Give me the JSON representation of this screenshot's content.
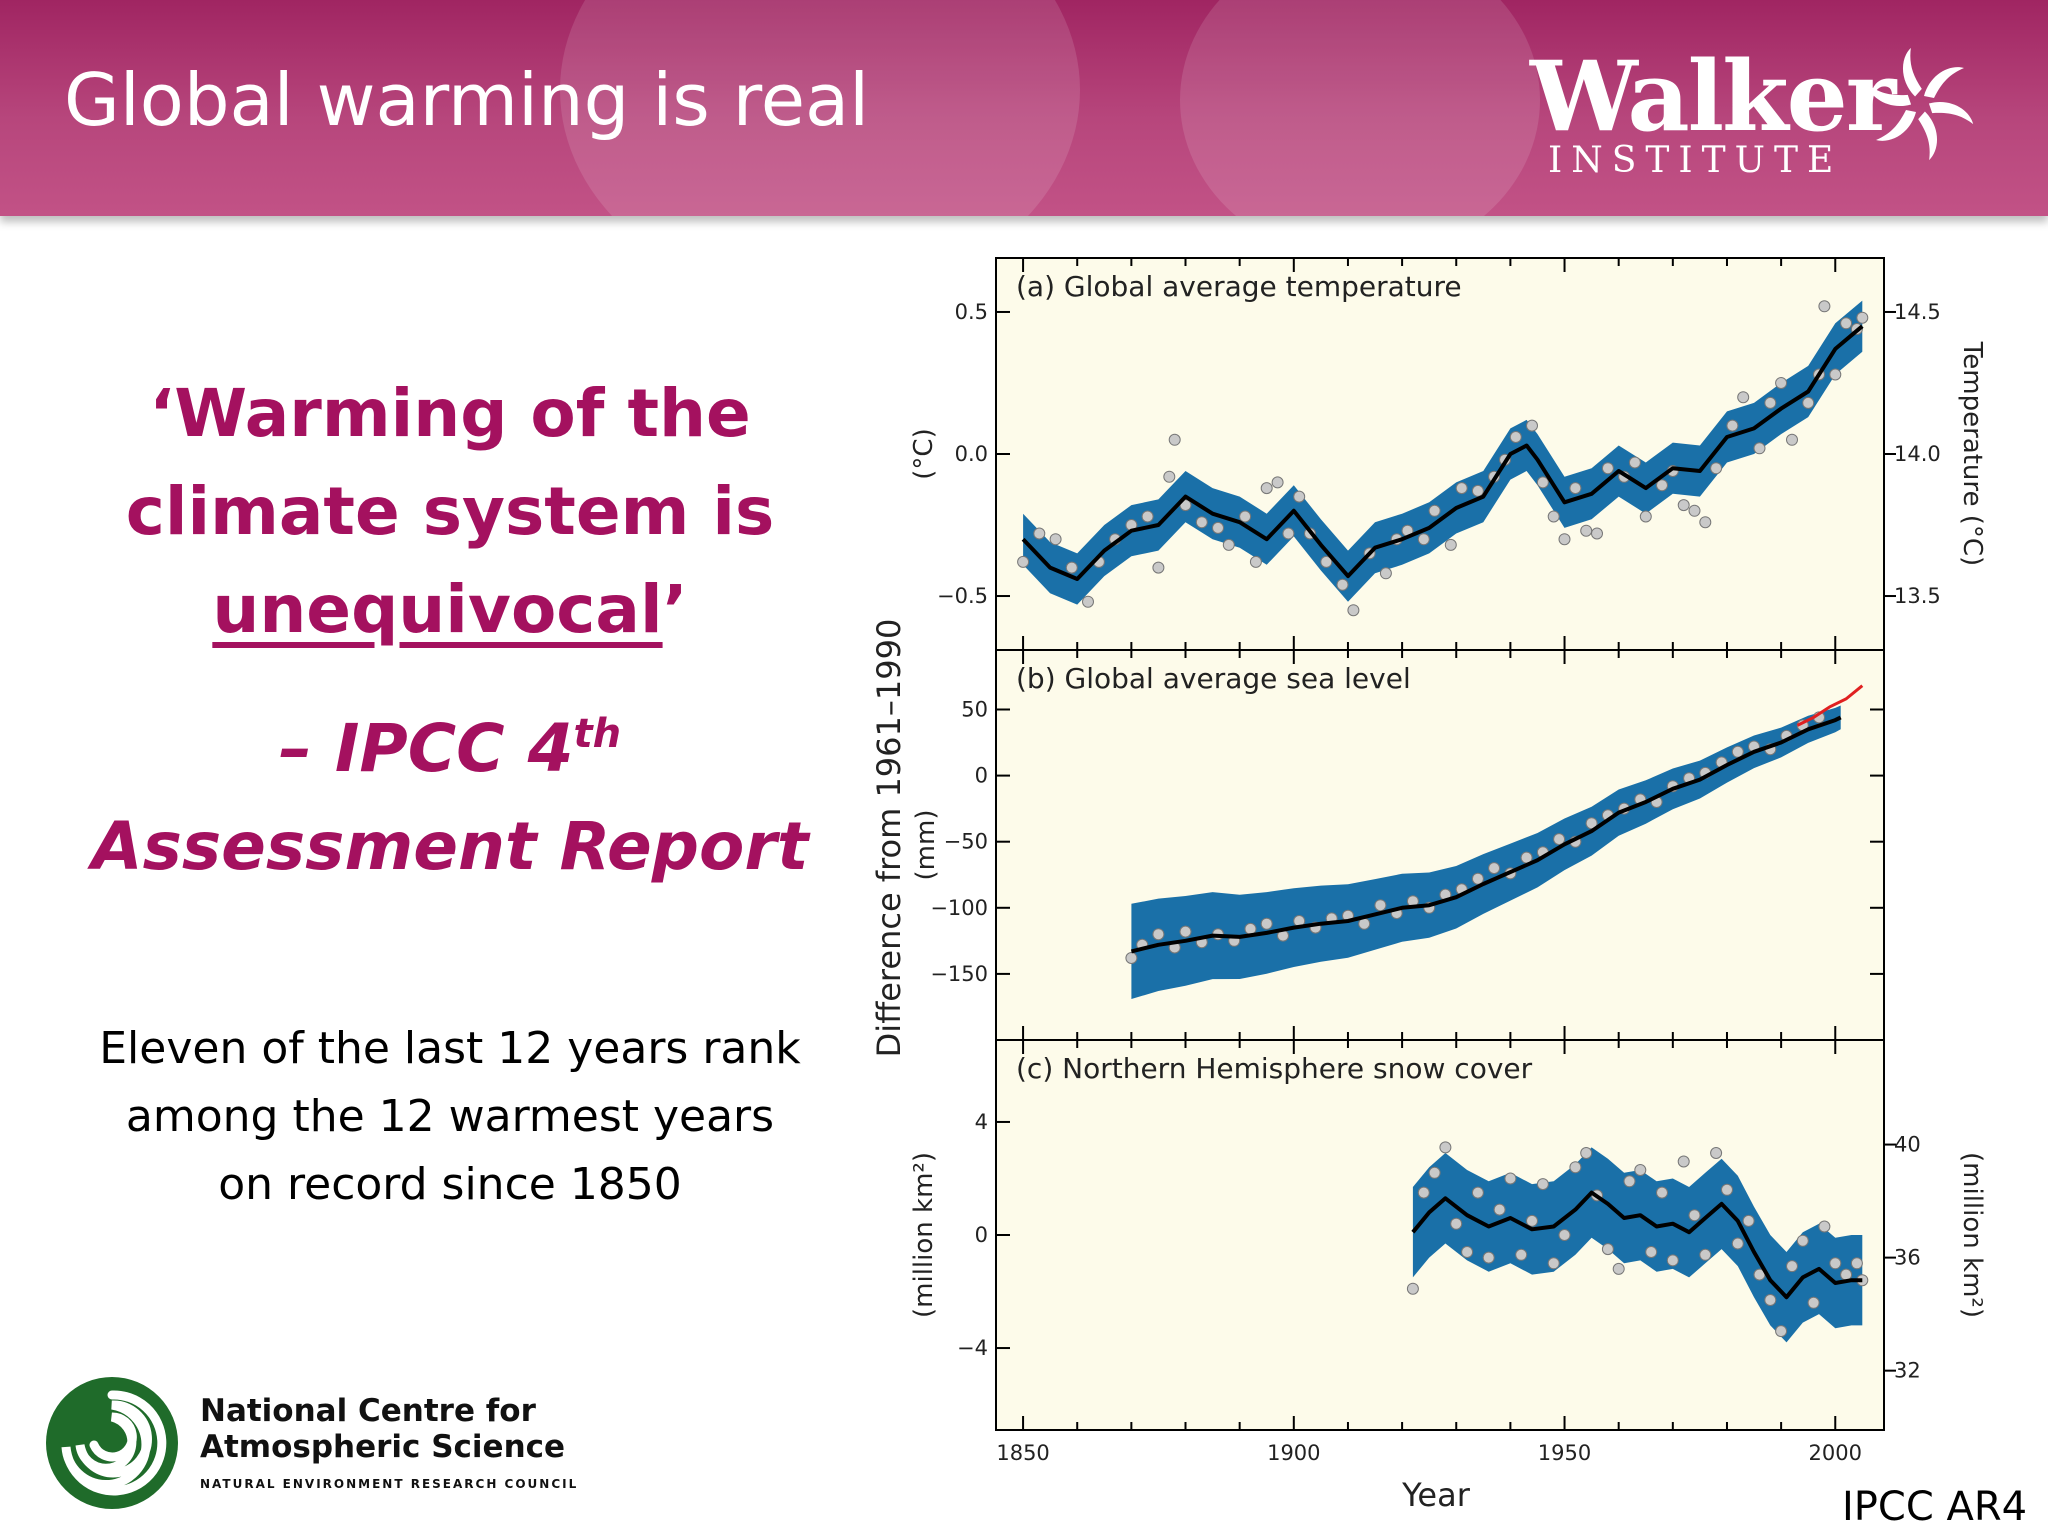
{
  "slide": {
    "title": "Global warming is real",
    "quote_line1": "‘Warming of the",
    "quote_line2": "climate system is",
    "quote_line3_word": "unequivocal",
    "quote_line3_end": "’",
    "attribution_line1_prefix": "– IPCC 4",
    "attribution_line1_sup": "th",
    "attribution_line2": "Assessment Report",
    "fact_line1": "Eleven of the last 12 years rank",
    "fact_line2": "among the 12 warmest years",
    "fact_line3": "on record since 1850",
    "source": "IPCC AR4",
    "colors": {
      "header": "#a62a66",
      "quote": "#a4115f",
      "band": "#1a70a8",
      "plot_bg": "#fdfbea",
      "satellite": "#e02020"
    }
  },
  "logos": {
    "walker_word": "Walker",
    "walker_sub": "INSTITUTE",
    "ncas_line1": "National Centre for",
    "ncas_line2": "Atmospheric Science",
    "ncas_sub": "NATURAL ENVIRONMENT RESEARCH COUNCIL"
  },
  "chart_data": {
    "type": "line",
    "xlabel": "Year",
    "xlim": [
      1845,
      2009
    ],
    "x_ticks": [
      1850,
      1900,
      1950,
      2000
    ],
    "shared_ylabel": "Difference from 1961–1990",
    "panels": [
      {
        "id": "temperature",
        "title": "(a) Global average temperature",
        "ylabel": "(°C)",
        "ylim": [
          -0.69,
          0.69
        ],
        "y_ticks": [
          -0.5,
          0.0,
          0.5
        ],
        "y_tick_labels": [
          "−0.5",
          "0.0",
          "0.5"
        ],
        "right_ylabel": "Temperature (°C)",
        "right_ticks": [
          {
            "value": -0.5,
            "label": "13.5"
          },
          {
            "value": 0.0,
            "label": "14.0"
          },
          {
            "value": 0.5,
            "label": "14.5"
          }
        ],
        "smoothed": [
          [
            1850,
            -0.3
          ],
          [
            1855,
            -0.4
          ],
          [
            1860,
            -0.44
          ],
          [
            1865,
            -0.34
          ],
          [
            1870,
            -0.27
          ],
          [
            1875,
            -0.25
          ],
          [
            1880,
            -0.15
          ],
          [
            1885,
            -0.21
          ],
          [
            1890,
            -0.24
          ],
          [
            1895,
            -0.3
          ],
          [
            1900,
            -0.2
          ],
          [
            1905,
            -0.32
          ],
          [
            1910,
            -0.43
          ],
          [
            1915,
            -0.33
          ],
          [
            1920,
            -0.3
          ],
          [
            1925,
            -0.26
          ],
          [
            1930,
            -0.19
          ],
          [
            1935,
            -0.15
          ],
          [
            1940,
            0.0
          ],
          [
            1943,
            0.03
          ],
          [
            1945,
            -0.02
          ],
          [
            1950,
            -0.17
          ],
          [
            1955,
            -0.14
          ],
          [
            1960,
            -0.06
          ],
          [
            1965,
            -0.12
          ],
          [
            1970,
            -0.05
          ],
          [
            1975,
            -0.06
          ],
          [
            1980,
            0.06
          ],
          [
            1985,
            0.09
          ],
          [
            1990,
            0.16
          ],
          [
            1995,
            0.22
          ],
          [
            2000,
            0.37
          ],
          [
            2005,
            0.45
          ]
        ],
        "band_halfwidth": 0.09,
        "annual": [
          [
            1850,
            -0.38
          ],
          [
            1853,
            -0.28
          ],
          [
            1856,
            -0.3
          ],
          [
            1859,
            -0.4
          ],
          [
            1862,
            -0.52
          ],
          [
            1864,
            -0.38
          ],
          [
            1867,
            -0.3
          ],
          [
            1870,
            -0.25
          ],
          [
            1873,
            -0.22
          ],
          [
            1875,
            -0.4
          ],
          [
            1877,
            -0.08
          ],
          [
            1878,
            0.05
          ],
          [
            1880,
            -0.18
          ],
          [
            1883,
            -0.24
          ],
          [
            1886,
            -0.26
          ],
          [
            1888,
            -0.32
          ],
          [
            1891,
            -0.22
          ],
          [
            1893,
            -0.38
          ],
          [
            1895,
            -0.12
          ],
          [
            1897,
            -0.1
          ],
          [
            1899,
            -0.28
          ],
          [
            1901,
            -0.15
          ],
          [
            1903,
            -0.28
          ],
          [
            1906,
            -0.38
          ],
          [
            1909,
            -0.46
          ],
          [
            1911,
            -0.55
          ],
          [
            1914,
            -0.35
          ],
          [
            1917,
            -0.42
          ],
          [
            1919,
            -0.3
          ],
          [
            1921,
            -0.27
          ],
          [
            1924,
            -0.3
          ],
          [
            1926,
            -0.2
          ],
          [
            1929,
            -0.32
          ],
          [
            1931,
            -0.12
          ],
          [
            1934,
            -0.13
          ],
          [
            1937,
            -0.08
          ],
          [
            1939,
            -0.02
          ],
          [
            1941,
            0.06
          ],
          [
            1944,
            0.1
          ],
          [
            1946,
            -0.1
          ],
          [
            1948,
            -0.22
          ],
          [
            1950,
            -0.3
          ],
          [
            1952,
            -0.12
          ],
          [
            1954,
            -0.27
          ],
          [
            1956,
            -0.28
          ],
          [
            1958,
            -0.05
          ],
          [
            1961,
            -0.08
          ],
          [
            1963,
            -0.03
          ],
          [
            1965,
            -0.22
          ],
          [
            1968,
            -0.11
          ],
          [
            1970,
            -0.06
          ],
          [
            1972,
            -0.18
          ],
          [
            1974,
            -0.2
          ],
          [
            1976,
            -0.24
          ],
          [
            1978,
            -0.05
          ],
          [
            1981,
            0.1
          ],
          [
            1983,
            0.2
          ],
          [
            1986,
            0.02
          ],
          [
            1988,
            0.18
          ],
          [
            1990,
            0.25
          ],
          [
            1992,
            0.05
          ],
          [
            1995,
            0.18
          ],
          [
            1997,
            0.28
          ],
          [
            1998,
            0.52
          ],
          [
            2000,
            0.28
          ],
          [
            2002,
            0.46
          ],
          [
            2004,
            0.44
          ],
          [
            2005,
            0.48
          ]
        ]
      },
      {
        "id": "sea_level",
        "title": "(b) Global average sea level",
        "ylabel": "(mm)",
        "ylim": [
          -200,
          95
        ],
        "y_ticks": [
          -150,
          -100,
          -50,
          0,
          50
        ],
        "y_tick_labels": [
          "−150",
          "−100",
          "−50",
          "0",
          "50"
        ],
        "smoothed": [
          [
            1870,
            -133
          ],
          [
            1875,
            -128
          ],
          [
            1880,
            -125
          ],
          [
            1885,
            -121
          ],
          [
            1890,
            -122
          ],
          [
            1895,
            -119
          ],
          [
            1900,
            -115
          ],
          [
            1905,
            -112
          ],
          [
            1910,
            -110
          ],
          [
            1915,
            -105
          ],
          [
            1920,
            -100
          ],
          [
            1925,
            -98
          ],
          [
            1930,
            -92
          ],
          [
            1935,
            -82
          ],
          [
            1940,
            -73
          ],
          [
            1945,
            -64
          ],
          [
            1950,
            -52
          ],
          [
            1955,
            -42
          ],
          [
            1960,
            -28
          ],
          [
            1965,
            -20
          ],
          [
            1970,
            -10
          ],
          [
            1975,
            -3
          ],
          [
            1980,
            8
          ],
          [
            1985,
            18
          ],
          [
            1990,
            25
          ],
          [
            1995,
            35
          ],
          [
            2000,
            42
          ],
          [
            2001,
            44
          ]
        ],
        "band_halfwidth_start": 36,
        "band_halfwidth_end": 9,
        "annual": [
          [
            1870,
            -138
          ],
          [
            1872,
            -128
          ],
          [
            1875,
            -120
          ],
          [
            1878,
            -130
          ],
          [
            1880,
            -118
          ],
          [
            1883,
            -126
          ],
          [
            1886,
            -120
          ],
          [
            1889,
            -125
          ],
          [
            1892,
            -116
          ],
          [
            1895,
            -112
          ],
          [
            1898,
            -121
          ],
          [
            1901,
            -110
          ],
          [
            1904,
            -115
          ],
          [
            1907,
            -108
          ],
          [
            1910,
            -106
          ],
          [
            1913,
            -112
          ],
          [
            1916,
            -98
          ],
          [
            1919,
            -104
          ],
          [
            1922,
            -95
          ],
          [
            1925,
            -100
          ],
          [
            1928,
            -90
          ],
          [
            1931,
            -86
          ],
          [
            1934,
            -78
          ],
          [
            1937,
            -70
          ],
          [
            1940,
            -74
          ],
          [
            1943,
            -62
          ],
          [
            1946,
            -58
          ],
          [
            1949,
            -48
          ],
          [
            1952,
            -50
          ],
          [
            1955,
            -36
          ],
          [
            1958,
            -30
          ],
          [
            1961,
            -25
          ],
          [
            1964,
            -18
          ],
          [
            1967,
            -20
          ],
          [
            1970,
            -8
          ],
          [
            1973,
            -2
          ],
          [
            1976,
            2
          ],
          [
            1979,
            10
          ],
          [
            1982,
            18
          ],
          [
            1985,
            22
          ],
          [
            1988,
            20
          ],
          [
            1991,
            30
          ],
          [
            1994,
            38
          ],
          [
            1997,
            44
          ]
        ],
        "satellite": [
          [
            1993,
            38
          ],
          [
            1996,
            44
          ],
          [
            1999,
            52
          ],
          [
            2002,
            58
          ],
          [
            2005,
            68
          ]
        ]
      },
      {
        "id": "snow_cover",
        "title": "(c) Northern Hemisphere snow cover",
        "ylabel": "(million km²)",
        "ylim": [
          -6.9,
          6.9
        ],
        "y_ticks": [
          -4,
          0,
          4
        ],
        "y_tick_labels": [
          "−4",
          "0",
          "4"
        ],
        "right_ylabel": "(million km²)",
        "right_ticks": [
          {
            "value": -4.8,
            "label": "32"
          },
          {
            "value": -0.8,
            "label": "36"
          },
          {
            "value": 3.2,
            "label": "40"
          }
        ],
        "smoothed": [
          [
            1922,
            0.1
          ],
          [
            1925,
            0.8
          ],
          [
            1928,
            1.3
          ],
          [
            1932,
            0.7
          ],
          [
            1936,
            0.3
          ],
          [
            1940,
            0.6
          ],
          [
            1944,
            0.2
          ],
          [
            1948,
            0.3
          ],
          [
            1952,
            0.9
          ],
          [
            1955,
            1.5
          ],
          [
            1958,
            1.1
          ],
          [
            1961,
            0.6
          ],
          [
            1964,
            0.7
          ],
          [
            1967,
            0.3
          ],
          [
            1970,
            0.4
          ],
          [
            1973,
            0.1
          ],
          [
            1976,
            0.6
          ],
          [
            1979,
            1.1
          ],
          [
            1982,
            0.5
          ],
          [
            1985,
            -0.6
          ],
          [
            1988,
            -1.6
          ],
          [
            1991,
            -2.2
          ],
          [
            1994,
            -1.5
          ],
          [
            1997,
            -1.2
          ],
          [
            2000,
            -1.7
          ],
          [
            2003,
            -1.6
          ],
          [
            2005,
            -1.6
          ]
        ],
        "band_halfwidth": 1.6,
        "annual": [
          [
            1922,
            -1.9
          ],
          [
            1924,
            1.5
          ],
          [
            1926,
            2.2
          ],
          [
            1928,
            3.1
          ],
          [
            1930,
            0.4
          ],
          [
            1932,
            -0.6
          ],
          [
            1934,
            1.5
          ],
          [
            1936,
            -0.8
          ],
          [
            1938,
            0.9
          ],
          [
            1940,
            2.0
          ],
          [
            1942,
            -0.7
          ],
          [
            1944,
            0.5
          ],
          [
            1946,
            1.8
          ],
          [
            1948,
            -1.0
          ],
          [
            1950,
            0.0
          ],
          [
            1952,
            2.4
          ],
          [
            1954,
            2.9
          ],
          [
            1956,
            1.4
          ],
          [
            1958,
            -0.5
          ],
          [
            1960,
            -1.2
          ],
          [
            1962,
            1.9
          ],
          [
            1964,
            2.3
          ],
          [
            1966,
            -0.6
          ],
          [
            1968,
            1.5
          ],
          [
            1970,
            -0.9
          ],
          [
            1972,
            2.6
          ],
          [
            1974,
            0.7
          ],
          [
            1976,
            -0.7
          ],
          [
            1978,
            2.9
          ],
          [
            1980,
            1.6
          ],
          [
            1982,
            -0.3
          ],
          [
            1984,
            0.5
          ],
          [
            1986,
            -1.4
          ],
          [
            1988,
            -2.3
          ],
          [
            1990,
            -3.4
          ],
          [
            1992,
            -1.1
          ],
          [
            1994,
            -0.2
          ],
          [
            1996,
            -2.4
          ],
          [
            1998,
            0.3
          ],
          [
            2000,
            -1.0
          ],
          [
            2002,
            -1.4
          ],
          [
            2004,
            -1.0
          ],
          [
            2005,
            -1.6
          ]
        ]
      }
    ]
  }
}
